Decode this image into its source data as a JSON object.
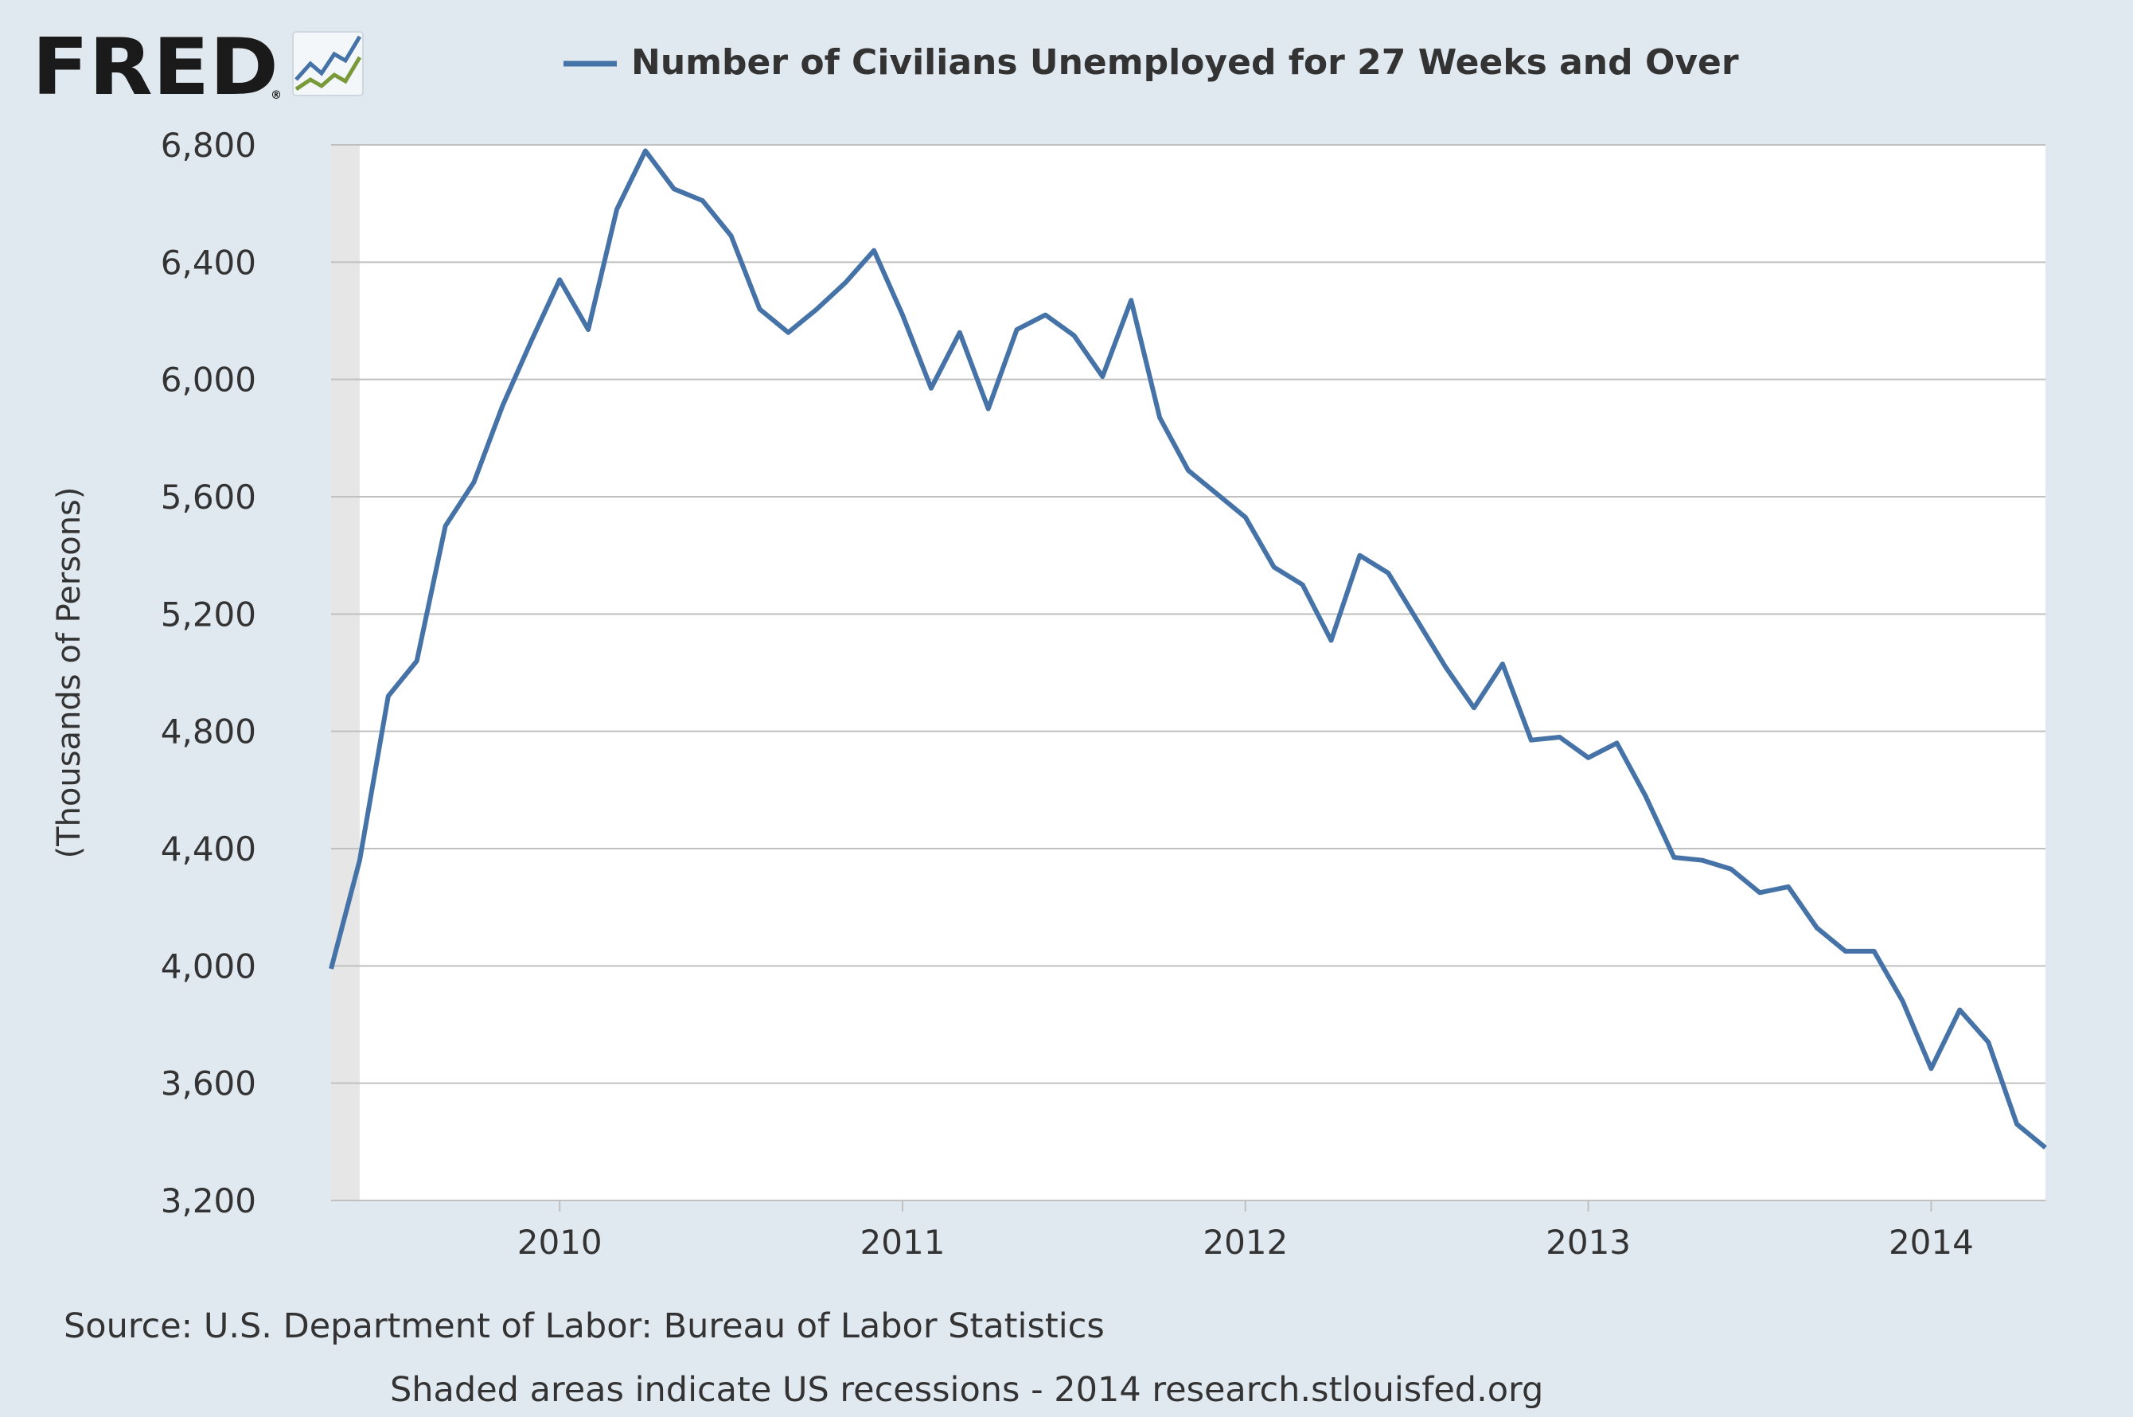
{
  "logo": {
    "text": "FRED",
    "mark": "®"
  },
  "source_text": "Source: U.S. Department of Labor: Bureau of Labor Statistics",
  "footer_text": "Shaded areas indicate US recessions - 2014 research.stlouisfed.org",
  "colors": {
    "background": "#e1e9f0",
    "plot_background": "#ffffff",
    "series": "#4572a7",
    "grid": "#c0c0c0",
    "recession": "#e6e6e6",
    "text": "#333333"
  },
  "chart_data": {
    "type": "line",
    "title": "",
    "xlabel": "",
    "ylabel": "(Thousands of Persons)",
    "x_start": "2009-05",
    "x_end": "2014-05",
    "frequency": "monthly",
    "ylim": [
      3200,
      6800
    ],
    "yticks": [
      3200,
      3600,
      4000,
      4400,
      4800,
      5200,
      5600,
      6000,
      6400,
      6800
    ],
    "ytick_labels": [
      "3,200",
      "3,600",
      "4,000",
      "4,400",
      "4,800",
      "5,200",
      "5,600",
      "6,000",
      "6,400",
      "6,800"
    ],
    "xticks": [
      "2010-01",
      "2011-01",
      "2012-01",
      "2013-01",
      "2014-01"
    ],
    "xtick_labels": [
      "2010",
      "2011",
      "2012",
      "2013",
      "2014"
    ],
    "grid": true,
    "legend_position": "top",
    "recessions": [
      {
        "start": "2009-05",
        "end": "2009-06"
      }
    ],
    "series": [
      {
        "name": "Number of Civilians Unemployed for 27 Weeks and Over",
        "dates": [
          "2009-05",
          "2009-06",
          "2009-07",
          "2009-08",
          "2009-09",
          "2009-10",
          "2009-11",
          "2009-12",
          "2010-01",
          "2010-02",
          "2010-03",
          "2010-04",
          "2010-05",
          "2010-06",
          "2010-07",
          "2010-08",
          "2010-09",
          "2010-10",
          "2010-11",
          "2010-12",
          "2011-01",
          "2011-02",
          "2011-03",
          "2011-04",
          "2011-05",
          "2011-06",
          "2011-07",
          "2011-08",
          "2011-09",
          "2011-10",
          "2011-11",
          "2011-12",
          "2012-01",
          "2012-02",
          "2012-03",
          "2012-04",
          "2012-05",
          "2012-06",
          "2012-07",
          "2012-08",
          "2012-09",
          "2012-10",
          "2012-11",
          "2012-12",
          "2013-01",
          "2013-02",
          "2013-03",
          "2013-04",
          "2013-05",
          "2013-06",
          "2013-07",
          "2013-08",
          "2013-09",
          "2013-10",
          "2013-11",
          "2013-12",
          "2014-01",
          "2014-02",
          "2014-03",
          "2014-04",
          "2014-05"
        ],
        "values": [
          3990,
          4360,
          4920,
          5040,
          5500,
          5650,
          5910,
          6130,
          6340,
          6170,
          6580,
          6780,
          6650,
          6610,
          6490,
          6240,
          6160,
          6240,
          6330,
          6440,
          6220,
          5970,
          6160,
          5900,
          6170,
          6220,
          6150,
          6010,
          6270,
          5870,
          5690,
          5610,
          5530,
          5360,
          5300,
          5110,
          5400,
          5340,
          5180,
          5020,
          4880,
          5030,
          4770,
          4780,
          4710,
          4760,
          4580,
          4370,
          4360,
          4330,
          4250,
          4270,
          4130,
          4050,
          4050,
          3880,
          3650,
          3850,
          3740,
          3460,
          3380
        ]
      }
    ]
  }
}
